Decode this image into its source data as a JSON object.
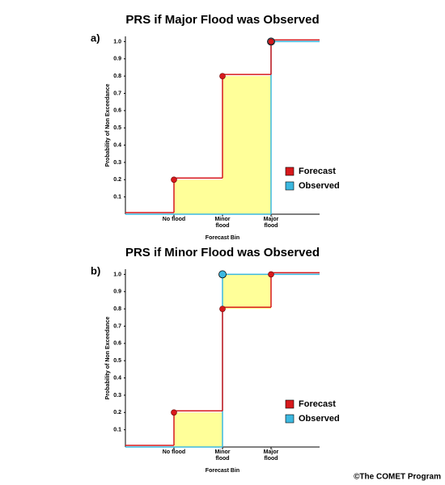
{
  "chart_data": [
    {
      "type": "step",
      "panel": "a)",
      "title": "PRS if Major Flood was Observed",
      "x_label": "Forecast Bin",
      "y_label": "Probability of Non Exceedance",
      "categories": [
        "No flood",
        "Minor flood",
        "Major flood"
      ],
      "ylim": [
        0,
        1.03
      ],
      "yticks": [
        0.1,
        0.2,
        0.3,
        0.4,
        0.5,
        0.6,
        0.7,
        0.8,
        0.9,
        {
          "value": 1,
          "label": "1.0"
        }
      ],
      "fill_color": "#ffff99",
      "legend": "right",
      "series": [
        {
          "name": "Forecast",
          "color": "#d7191c",
          "values": [
            0.2,
            0.8,
            1
          ]
        },
        {
          "name": "Observed",
          "color": "#3cb8e0",
          "values": [
            0,
            0,
            1
          ]
        }
      ]
    },
    {
      "type": "step",
      "panel": "b)",
      "title": "PRS if Minor Flood was Observed",
      "x_label": "Forecast Bin",
      "y_label": "Probability of Non Exceedance",
      "categories": [
        "No flood",
        "Minor flood",
        "Major flood"
      ],
      "ylim": [
        0,
        1.03
      ],
      "yticks": [
        0.1,
        0.2,
        0.3,
        0.4,
        0.5,
        0.6,
        0.7,
        0.8,
        0.9,
        {
          "value": 1,
          "label": "1.0"
        }
      ],
      "fill_color": "#ffff99",
      "legend": "right",
      "series": [
        {
          "name": "Forecast",
          "color": "#d7191c",
          "values": [
            0.2,
            0.8,
            1
          ]
        },
        {
          "name": "Observed",
          "color": "#3cb8e0",
          "values": [
            0,
            1,
            1
          ]
        }
      ]
    }
  ],
  "footer": "©The COMET Program"
}
